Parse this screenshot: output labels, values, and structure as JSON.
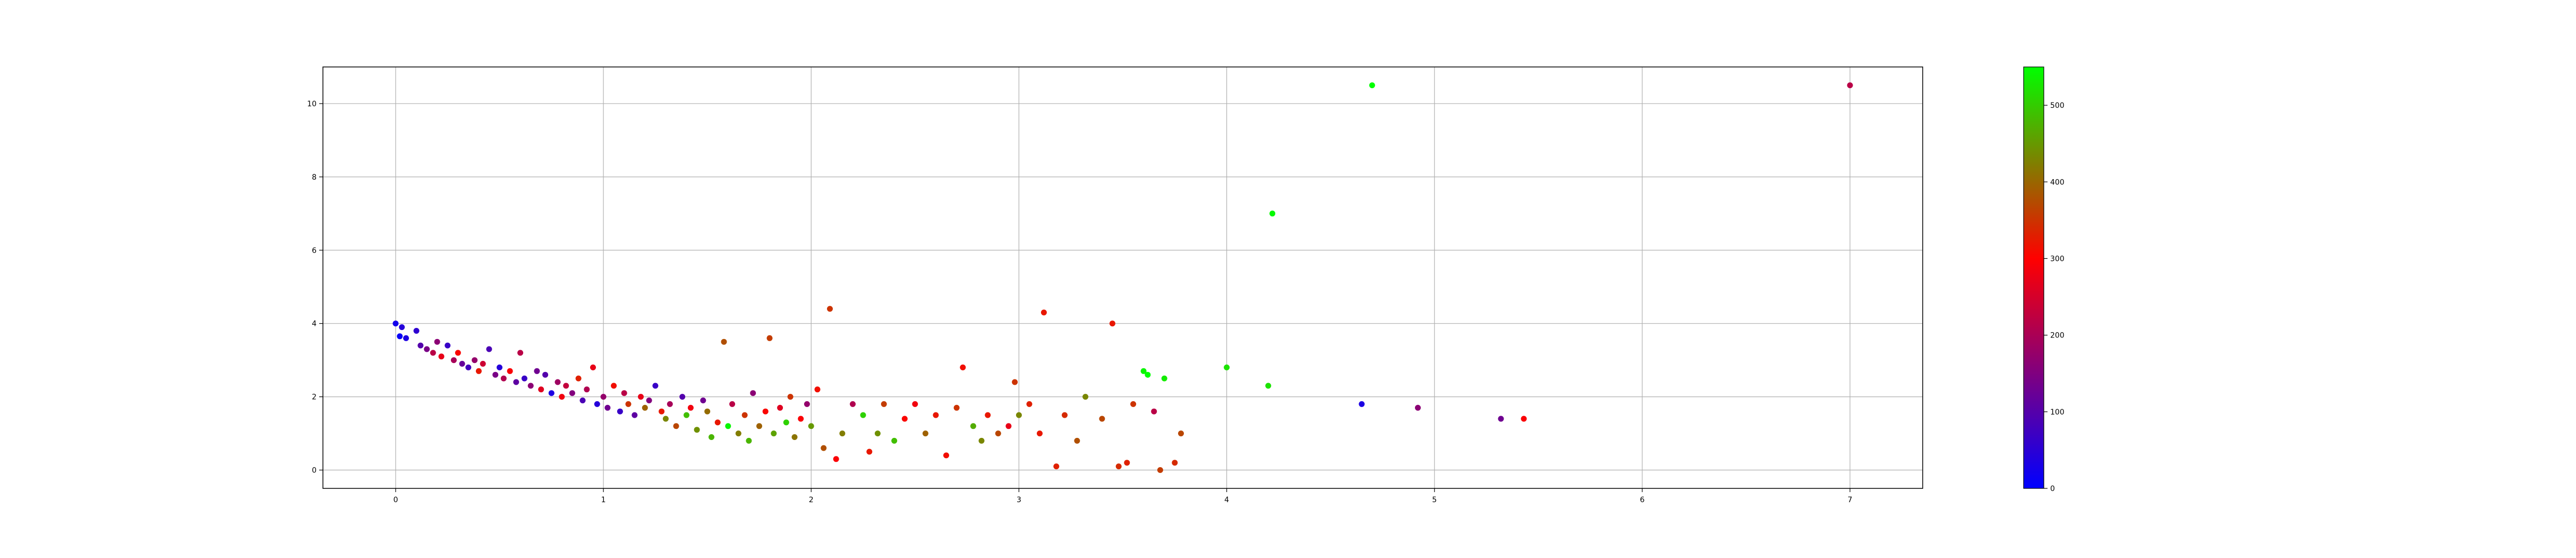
{
  "chart_data": {
    "type": "scatter",
    "title": "",
    "xlabel": "",
    "ylabel": "",
    "xlim": [
      -0.35,
      7.35
    ],
    "ylim": [
      -0.5,
      11.0
    ],
    "grid": true,
    "x_ticks": [
      0,
      1,
      2,
      3,
      4,
      5,
      6,
      7
    ],
    "y_ticks": [
      0,
      2,
      4,
      6,
      8,
      10
    ],
    "colorbar": {
      "range": [
        0,
        550
      ],
      "ticks": [
        0,
        100,
        200,
        300,
        400,
        500
      ],
      "colors": [
        "#0000ff",
        "#ff0000",
        "#00ff00"
      ]
    },
    "points": [
      [
        0.0,
        4.0,
        20
      ],
      [
        0.03,
        3.9,
        40
      ],
      [
        0.05,
        3.6,
        30
      ],
      [
        0.02,
        3.65,
        10
      ],
      [
        0.1,
        3.8,
        50
      ],
      [
        0.12,
        3.4,
        90
      ],
      [
        0.15,
        3.3,
        130
      ],
      [
        0.18,
        3.2,
        200
      ],
      [
        0.2,
        3.5,
        150
      ],
      [
        0.22,
        3.1,
        250
      ],
      [
        0.25,
        3.4,
        60
      ],
      [
        0.28,
        3.0,
        180
      ],
      [
        0.3,
        3.2,
        280
      ],
      [
        0.32,
        2.9,
        110
      ],
      [
        0.35,
        2.8,
        70
      ],
      [
        0.38,
        3.0,
        160
      ],
      [
        0.4,
        2.7,
        300
      ],
      [
        0.42,
        2.9,
        220
      ],
      [
        0.45,
        3.3,
        80
      ],
      [
        0.48,
        2.6,
        130
      ],
      [
        0.5,
        2.8,
        40
      ],
      [
        0.52,
        2.5,
        190
      ],
      [
        0.55,
        2.7,
        270
      ],
      [
        0.58,
        2.4,
        100
      ],
      [
        0.6,
        3.2,
        200
      ],
      [
        0.62,
        2.5,
        60
      ],
      [
        0.65,
        2.3,
        150
      ],
      [
        0.68,
        2.7,
        120
      ],
      [
        0.7,
        2.2,
        240
      ],
      [
        0.72,
        2.6,
        90
      ],
      [
        0.75,
        2.1,
        30
      ],
      [
        0.78,
        2.4,
        170
      ],
      [
        0.8,
        2.0,
        260
      ],
      [
        0.82,
        2.3,
        210
      ],
      [
        0.85,
        2.1,
        140
      ],
      [
        0.88,
        2.5,
        310
      ],
      [
        0.9,
        1.9,
        80
      ],
      [
        0.92,
        2.2,
        190
      ],
      [
        0.95,
        2.8,
        250
      ],
      [
        0.97,
        1.8,
        40
      ],
      [
        1.0,
        2.0,
        160
      ],
      [
        1.02,
        1.7,
        120
      ],
      [
        1.05,
        2.3,
        290
      ],
      [
        1.08,
        1.6,
        60
      ],
      [
        1.1,
        2.1,
        200
      ],
      [
        1.12,
        1.8,
        330
      ],
      [
        1.15,
        1.5,
        100
      ],
      [
        1.18,
        2.0,
        250
      ],
      [
        1.2,
        1.7,
        380
      ],
      [
        1.22,
        1.9,
        140
      ],
      [
        1.25,
        2.3,
        60
      ],
      [
        1.28,
        1.6,
        300
      ],
      [
        1.3,
        1.4,
        420
      ],
      [
        1.32,
        1.8,
        180
      ],
      [
        1.35,
        1.2,
        350
      ],
      [
        1.38,
        2.0,
        90
      ],
      [
        1.4,
        1.5,
        480
      ],
      [
        1.42,
        1.7,
        260
      ],
      [
        1.45,
        1.1,
        430
      ],
      [
        1.48,
        1.9,
        120
      ],
      [
        1.5,
        1.6,
        390
      ],
      [
        1.52,
        0.9,
        470
      ],
      [
        1.55,
        1.3,
        300
      ],
      [
        1.58,
        3.5,
        360
      ],
      [
        1.6,
        1.2,
        540
      ],
      [
        1.62,
        1.8,
        200
      ],
      [
        1.65,
        1.0,
        410
      ],
      [
        1.68,
        1.5,
        330
      ],
      [
        1.7,
        0.8,
        470
      ],
      [
        1.72,
        2.1,
        150
      ],
      [
        1.75,
        1.2,
        380
      ],
      [
        1.78,
        1.6,
        280
      ],
      [
        1.8,
        3.6,
        340
      ],
      [
        1.82,
        1.0,
        450
      ],
      [
        1.85,
        1.7,
        240
      ],
      [
        1.88,
        1.3,
        500
      ],
      [
        1.9,
        2.0,
        330
      ],
      [
        1.92,
        0.9,
        400
      ],
      [
        1.95,
        1.4,
        270
      ],
      [
        1.98,
        1.8,
        160
      ],
      [
        2.0,
        1.2,
        440
      ],
      [
        2.03,
        2.2,
        290
      ],
      [
        2.06,
        0.6,
        360
      ],
      [
        2.09,
        4.4,
        330
      ],
      [
        2.12,
        0.3,
        270
      ],
      [
        2.15,
        1.0,
        410
      ],
      [
        2.2,
        1.8,
        190
      ],
      [
        2.25,
        1.5,
        500
      ],
      [
        2.28,
        0.5,
        300
      ],
      [
        2.32,
        1.0,
        430
      ],
      [
        2.35,
        1.8,
        340
      ],
      [
        2.4,
        0.8,
        480
      ],
      [
        2.45,
        1.4,
        280
      ],
      [
        2.5,
        1.8,
        260
      ],
      [
        2.55,
        1.0,
        380
      ],
      [
        2.6,
        1.5,
        300
      ],
      [
        2.65,
        0.4,
        290
      ],
      [
        2.7,
        1.7,
        330
      ],
      [
        2.73,
        2.8,
        290
      ],
      [
        2.78,
        1.2,
        460
      ],
      [
        2.82,
        0.8,
        420
      ],
      [
        2.85,
        1.5,
        300
      ],
      [
        2.9,
        1.0,
        350
      ],
      [
        2.95,
        1.2,
        250
      ],
      [
        2.98,
        2.4,
        330
      ],
      [
        3.0,
        1.5,
        420
      ],
      [
        3.05,
        1.8,
        310
      ],
      [
        3.1,
        1.0,
        300
      ],
      [
        3.12,
        4.3,
        300
      ],
      [
        3.18,
        0.1,
        310
      ],
      [
        3.22,
        1.5,
        320
      ],
      [
        3.28,
        0.8,
        360
      ],
      [
        3.32,
        2.0,
        420
      ],
      [
        3.4,
        1.4,
        350
      ],
      [
        3.45,
        4.0,
        300
      ],
      [
        3.48,
        0.1,
        320
      ],
      [
        3.52,
        0.2,
        310
      ],
      [
        3.55,
        1.8,
        330
      ],
      [
        3.6,
        2.7,
        540
      ],
      [
        3.62,
        2.6,
        550
      ],
      [
        3.65,
        1.6,
        200
      ],
      [
        3.68,
        0.0,
        340
      ],
      [
        3.7,
        2.5,
        530
      ],
      [
        3.75,
        0.2,
        320
      ],
      [
        3.78,
        1.0,
        350
      ],
      [
        4.0,
        2.8,
        520
      ],
      [
        4.2,
        2.3,
        520
      ],
      [
        4.22,
        7.0,
        545
      ],
      [
        4.65,
        1.8,
        30
      ],
      [
        4.7,
        10.5,
        550
      ],
      [
        4.92,
        1.7,
        150
      ],
      [
        5.32,
        1.4,
        120
      ],
      [
        5.43,
        1.4,
        270
      ],
      [
        7.0,
        10.5,
        200
      ]
    ]
  }
}
